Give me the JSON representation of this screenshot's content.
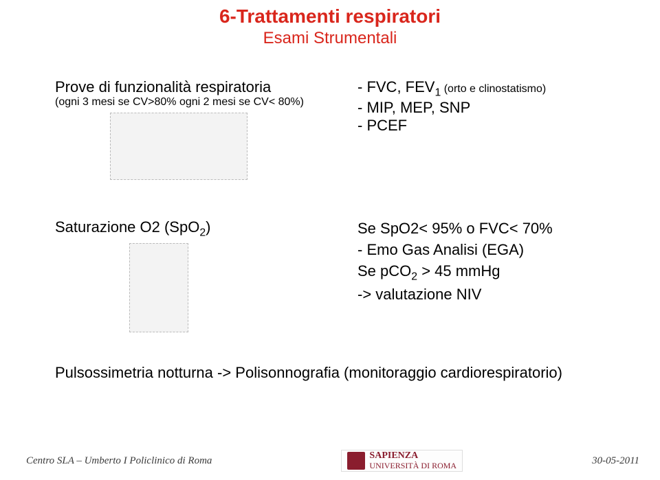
{
  "title": {
    "main": "6-Trattamenti respiratori",
    "sub": "Esami Strumentali",
    "color": "#d9261c"
  },
  "section1": {
    "left_heading": "Prove di funzionalità respiratoria",
    "left_note_prefix": "(ogni 3 mesi se CV>80% ogni 2 mesi se CV< 80%)",
    "right_line1_prefix": "- FVC, FEV",
    "right_line1_sub": "1",
    "right_line1_suffix": "  (orto e clinostatismo)",
    "right_line2": "- MIP, MEP, SNP",
    "right_line3": "- PCEF"
  },
  "section2": {
    "left_prefix": "Saturazione O2 (SpO",
    "left_sub": "2",
    "left_suffix": ")",
    "r1": "Se SpO2< 95% o FVC< 70%",
    "r2": "- Emo Gas Analisi (EGA)",
    "r3_prefix": "Se pCO",
    "r3_sub": "2",
    "r3_suffix": "  > 45 mmHg",
    "r4": "-> valutazione NIV"
  },
  "section3": {
    "text": "Pulsossimetria notturna  -> Polisonnografia (monitoraggio cardiorespiratorio)"
  },
  "footer": {
    "left": "Centro SLA – Umberto I Policlinico di Roma",
    "right": "30-05-2011",
    "logo_main": "SAPIENZA",
    "logo_sub": "UNIVERSITÀ DI ROMA"
  }
}
